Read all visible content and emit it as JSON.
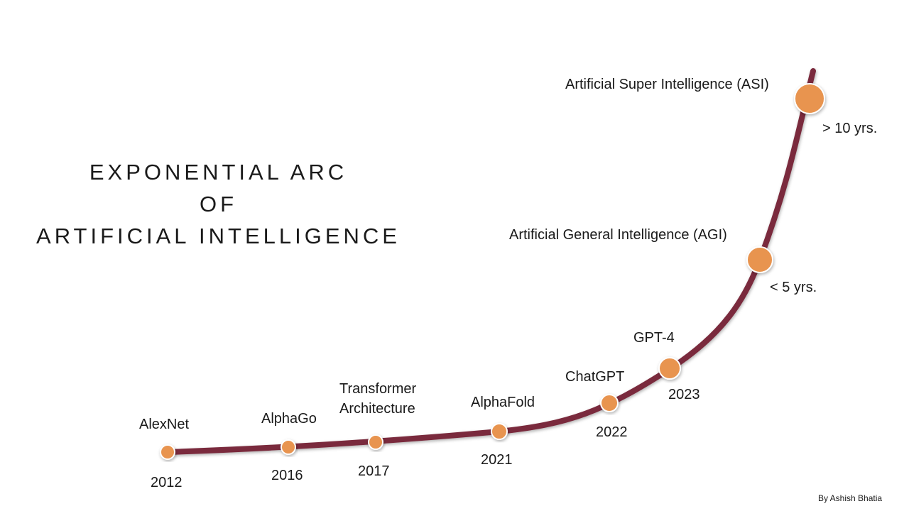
{
  "title": {
    "line1": "EXPONENTIAL ARC",
    "line2": "OF",
    "line3": "ARTIFICIAL INTELLIGENCE"
  },
  "milestones": [
    {
      "name": "AlexNet",
      "year": "2012"
    },
    {
      "name": "AlphaGo",
      "year": "2016"
    },
    {
      "name": "Transformer Architecture",
      "name_line1": "Transformer",
      "name_line2": "Architecture",
      "year": "2017"
    },
    {
      "name": "AlphaFold",
      "year": "2021"
    },
    {
      "name": "ChatGPT",
      "year": "2022"
    },
    {
      "name": "GPT-4",
      "year": "2023"
    },
    {
      "name": "Artificial General Intelligence (AGI)",
      "year": "< 5 yrs."
    },
    {
      "name": "Artificial Super Intelligence (ASI)",
      "year": "> 10 yrs."
    }
  ],
  "colors": {
    "curve": "#7a2b3c",
    "node": "#e8944f",
    "node_outline": "#ffffff",
    "text": "#1a1a1a"
  },
  "credit": "By Ashish Bhatia"
}
